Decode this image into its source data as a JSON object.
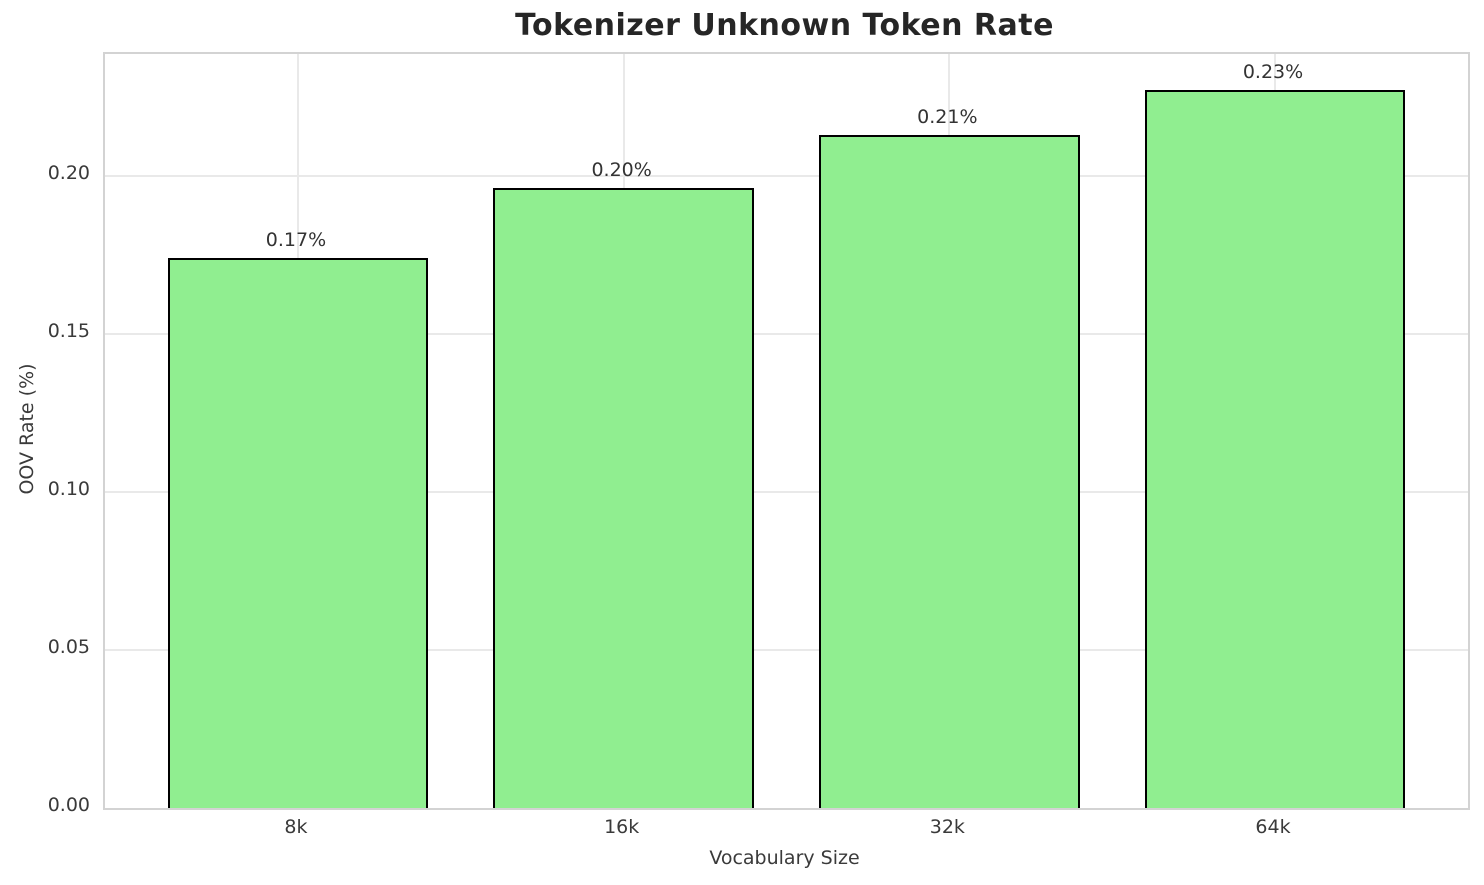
{
  "chart_data": {
    "type": "bar",
    "title": "Tokenizer Unknown Token Rate",
    "xlabel": "Vocabulary Size",
    "ylabel": "OOV Rate (%)",
    "categories": [
      "8k",
      "16k",
      "32k",
      "64k"
    ],
    "values": [
      0.174,
      0.196,
      0.213,
      0.227
    ],
    "bar_labels": [
      "0.17%",
      "0.20%",
      "0.21%",
      "0.23%"
    ],
    "ytick_labels": [
      "0.00",
      "0.05",
      "0.10",
      "0.15",
      "0.20"
    ],
    "ytick_values": [
      0.0,
      0.05,
      0.1,
      0.15,
      0.2
    ],
    "ylim": [
      0.0,
      0.2385
    ],
    "grid": true,
    "legend": false,
    "colors": {
      "bar_fill": "#90EE90",
      "bar_edge": "#000000",
      "grid": "#e9e9e9",
      "axes_edge": "#d3d3d3",
      "title_text": "#262626",
      "tick_text": "#3a3a3a",
      "value_label_text": "#333333",
      "background": "#ffffff"
    }
  }
}
